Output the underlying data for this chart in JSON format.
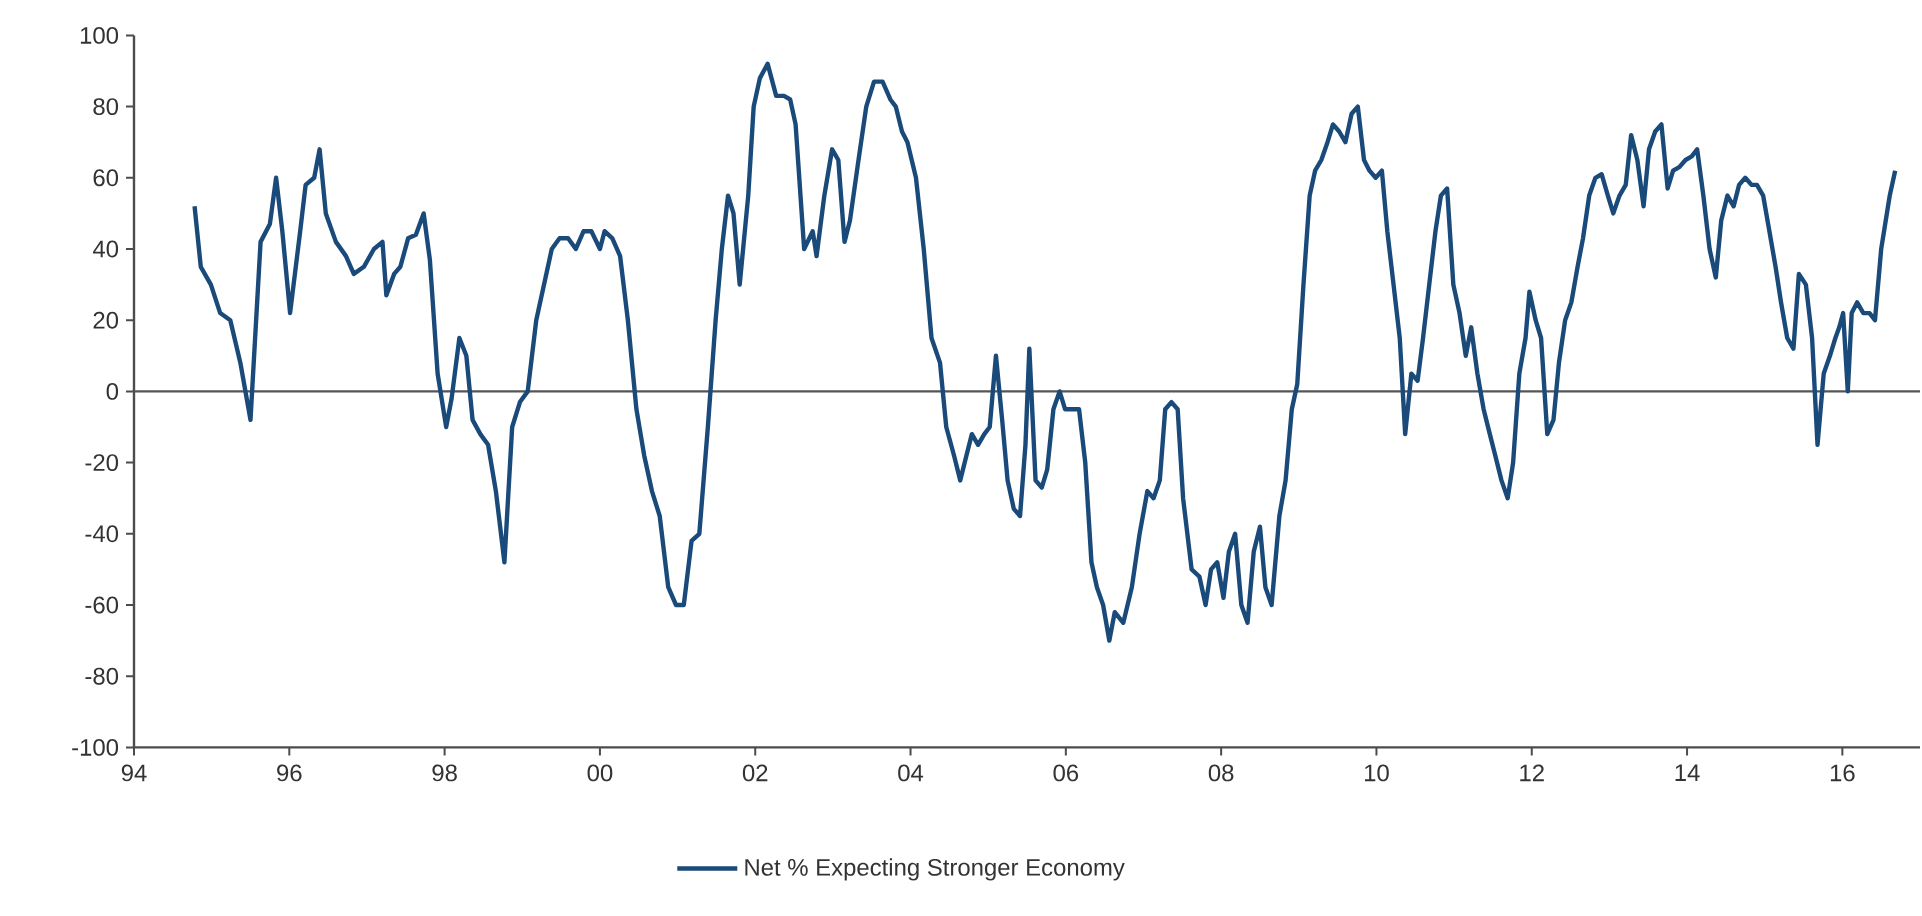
{
  "chart_data": {
    "type": "line",
    "xlim": [
      1994,
      2017
    ],
    "xticks": [
      {
        "value": 1994,
        "label": "94"
      },
      {
        "value": 1996,
        "label": "96"
      },
      {
        "value": 1998,
        "label": "98"
      },
      {
        "value": 2000,
        "label": "00"
      },
      {
        "value": 2002,
        "label": "02"
      },
      {
        "value": 2004,
        "label": "04"
      },
      {
        "value": 2006,
        "label": "06"
      },
      {
        "value": 2008,
        "label": "08"
      },
      {
        "value": 2010,
        "label": "10"
      },
      {
        "value": 2012,
        "label": "12"
      },
      {
        "value": 2014,
        "label": "14"
      },
      {
        "value": 2016,
        "label": "16"
      }
    ],
    "ylim": [
      -100,
      100
    ],
    "yticks": [
      -100,
      -80,
      -60,
      -40,
      -20,
      0,
      20,
      40,
      60,
      80,
      100
    ],
    "grid": false,
    "legend": "bottom",
    "marker": "none",
    "line_style": "solid",
    "ref_lines": [
      {
        "axis": "y",
        "value": 0,
        "color": "#555555"
      }
    ],
    "series": [
      {
        "name": "Net % Expecting Stronger Economy",
        "color": "#1a4a7a",
        "x": [
          1994.78,
          1994.86,
          1994.99,
          1995.11,
          1995.24,
          1995.37,
          1995.5,
          1995.63,
          1995.75,
          1995.83,
          1995.91,
          1996.01,
          1996.14,
          1996.21,
          1996.32,
          1996.39,
          1996.47,
          1996.6,
          1996.73,
          1996.83,
          1996.96,
          1997.09,
          1997.2,
          1997.25,
          1997.35,
          1997.43,
          1997.53,
          1997.63,
          1997.73,
          1997.81,
          1997.91,
          1998.02,
          1998.09,
          1998.19,
          1998.28,
          1998.36,
          1998.46,
          1998.56,
          1998.66,
          1998.77,
          1998.87,
          1998.97,
          1999.07,
          1999.18,
          1999.28,
          1999.38,
          1999.48,
          1999.59,
          1999.69,
          1999.79,
          1999.89,
          2000.0,
          2000.06,
          2000.16,
          2000.26,
          2000.36,
          2000.47,
          2000.57,
          2000.67,
          2000.77,
          2000.88,
          2000.98,
          2001.08,
          2001.18,
          2001.28,
          2001.39,
          2001.49,
          2001.57,
          2001.65,
          2001.72,
          2001.8,
          2001.91,
          2001.98,
          2002.06,
          2002.16,
          2002.27,
          2002.37,
          2002.45,
          2002.52,
          2002.63,
          2002.74,
          2002.79,
          2002.89,
          2002.99,
          2003.07,
          2003.15,
          2003.22,
          2003.33,
          2003.43,
          2003.53,
          2003.64,
          2003.74,
          2003.81,
          2003.89,
          2003.96,
          2004.07,
          2004.17,
          2004.27,
          2004.38,
          2004.46,
          2004.56,
          2004.64,
          2004.72,
          2004.79,
          2004.87,
          2004.95,
          2005.02,
          2005.1,
          2005.18,
          2005.25,
          2005.33,
          2005.41,
          2005.48,
          2005.53,
          2005.61,
          2005.69,
          2005.76,
          2005.84,
          2005.92,
          2005.99,
          2006.07,
          2006.17,
          2006.25,
          2006.33,
          2006.4,
          2006.48,
          2006.56,
          2006.63,
          2006.74,
          2006.85,
          2006.95,
          2007.05,
          2007.13,
          2007.21,
          2007.28,
          2007.36,
          2007.44,
          2007.51,
          2007.62,
          2007.72,
          2007.8,
          2007.87,
          2007.95,
          2008.03,
          2008.1,
          2008.18,
          2008.26,
          2008.34,
          2008.42,
          2008.5,
          2008.57,
          2008.65,
          2008.75,
          2008.83,
          2008.91,
          2008.98,
          2009.06,
          2009.14,
          2009.21,
          2009.29,
          2009.37,
          2009.44,
          2009.52,
          2009.6,
          2009.68,
          2009.76,
          2009.84,
          2009.91,
          2009.99,
          2010.07,
          2010.14,
          2010.22,
          2010.3,
          2010.37,
          2010.45,
          2010.53,
          2010.6,
          2010.68,
          2010.76,
          2010.83,
          2010.91,
          2010.99,
          2011.07,
          2011.15,
          2011.22,
          2011.3,
          2011.38,
          2011.46,
          2011.53,
          2011.61,
          2011.69,
          2011.76,
          2011.84,
          2011.92,
          2011.97,
          2012.05,
          2012.12,
          2012.2,
          2012.28,
          2012.35,
          2012.43,
          2012.51,
          2012.59,
          2012.66,
          2012.74,
          2012.82,
          2012.9,
          2012.98,
          2013.05,
          2013.13,
          2013.21,
          2013.28,
          2013.36,
          2013.44,
          2013.51,
          2013.59,
          2013.67,
          2013.75,
          2013.82,
          2013.9,
          2013.98,
          2014.06,
          2014.13,
          2014.21,
          2014.29,
          2014.37,
          2014.44,
          2014.52,
          2014.6,
          2014.67,
          2014.75,
          2014.83,
          2014.9,
          2014.98,
          2015.06,
          2015.14,
          2015.21,
          2015.29,
          2015.37,
          2015.44,
          2015.53,
          2015.61,
          2015.68,
          2015.76,
          2015.84,
          2015.91,
          2015.96,
          2016.01,
          2016.07,
          2016.12,
          2016.19,
          2016.27,
          2016.35,
          2016.42,
          2016.5,
          2016.61,
          2016.68
        ],
        "values": [
          52,
          35,
          30,
          22,
          20,
          8,
          -8,
          42,
          47,
          60,
          45,
          22,
          45,
          58,
          60,
          68,
          50,
          42,
          38,
          33,
          35,
          40,
          42,
          27,
          33,
          35,
          43,
          44,
          50,
          37,
          5,
          -10,
          -2,
          15,
          10,
          -8,
          -12,
          -15,
          -28,
          -48,
          -10,
          -3,
          0,
          20,
          30,
          40,
          43,
          43,
          40,
          45,
          45,
          40,
          45,
          43,
          38,
          20,
          -5,
          -18,
          -28,
          -35,
          -55,
          -60,
          -60,
          -42,
          -40,
          -10,
          20,
          40,
          55,
          50,
          30,
          55,
          80,
          88,
          92,
          83,
          83,
          82,
          75,
          40,
          45,
          38,
          55,
          68,
          65,
          42,
          48,
          65,
          80,
          87,
          87,
          82,
          80,
          73,
          70,
          60,
          40,
          15,
          8,
          -10,
          -18,
          -25,
          -18,
          -12,
          -15,
          -12,
          -10,
          10,
          -8,
          -25,
          -33,
          -35,
          -15,
          12,
          -25,
          -27,
          -22,
          -5,
          0,
          -5,
          -5,
          -5,
          -20,
          -48,
          -55,
          -60,
          -70,
          -62,
          -65,
          -55,
          -40,
          -28,
          -30,
          -25,
          -5,
          -3,
          -5,
          -30,
          -50,
          -52,
          -60,
          -50,
          -48,
          -58,
          -45,
          -40,
          -60,
          -65,
          -45,
          -38,
          -55,
          -60,
          -35,
          -25,
          -5,
          2,
          30,
          55,
          62,
          65,
          70,
          75,
          73,
          70,
          78,
          80,
          65,
          62,
          60,
          62,
          45,
          30,
          15,
          -12,
          5,
          3,
          15,
          30,
          45,
          55,
          57,
          30,
          22,
          10,
          18,
          5,
          -5,
          -12,
          -18,
          -25,
          -30,
          -20,
          5,
          15,
          28,
          20,
          15,
          -12,
          -8,
          8,
          20,
          25,
          35,
          43,
          55,
          60,
          61,
          55,
          50,
          55,
          58,
          72,
          65,
          52,
          68,
          73,
          75,
          57,
          62,
          63,
          65,
          66,
          68,
          55,
          40,
          32,
          48,
          55,
          52,
          58,
          60,
          58,
          58,
          55,
          45,
          35,
          25,
          15,
          12,
          33,
          30,
          15,
          -15,
          5,
          10,
          15,
          18,
          22,
          0,
          22,
          25,
          22,
          22,
          20,
          40,
          55,
          62
        ]
      }
    ]
  }
}
